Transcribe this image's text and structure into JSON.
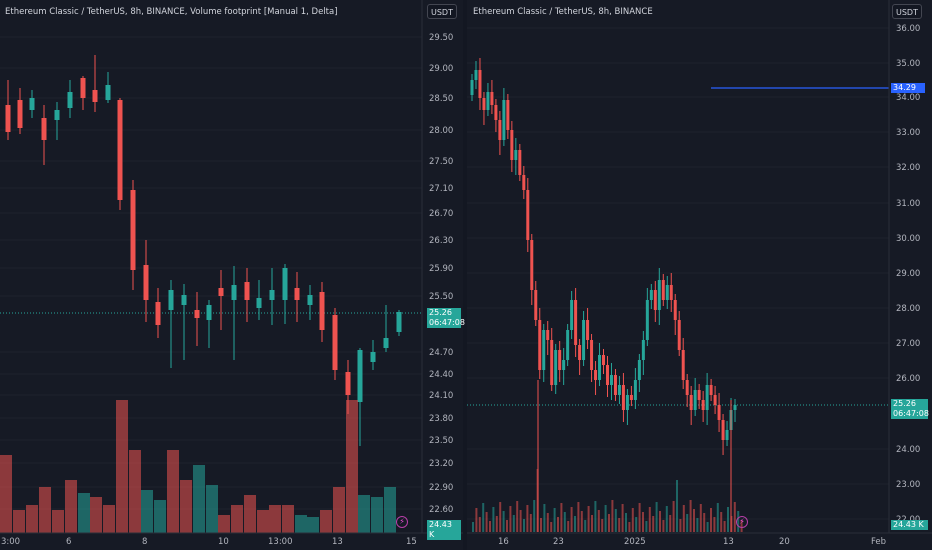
{
  "left": {
    "title": "Ethereum Classic / TetherUS, 8h, BINANCE, Volume footprint [Manual 1, Delta]",
    "currency": "USDT",
    "y_ticks": [
      "29.50",
      "29.00",
      "28.50",
      "28.00",
      "27.50",
      "27.10",
      "26.70",
      "26.30",
      "25.90",
      "25.50",
      "24.70",
      "24.40",
      "24.10",
      "23.80",
      "23.50",
      "23.20",
      "22.90",
      "22.60"
    ],
    "x_ticks": [
      "3:00",
      "6",
      "8",
      "10",
      "13:00",
      "13",
      "15"
    ],
    "price_tag": "25.26",
    "timer_tag": "06:47:08",
    "volume_tag": "24.43 K",
    "bolt_icon": "lightning-icon"
  },
  "right": {
    "title": "Ethereum Classic / TetherUS, 8h, BINANCE",
    "currency": "USDT",
    "y_ticks": [
      "36.00",
      "35.00",
      "34.00",
      "33.00",
      "32.00",
      "31.00",
      "30.00",
      "29.00",
      "28.00",
      "27.00",
      "26.00",
      "24.00",
      "23.00",
      "22.00"
    ],
    "x_ticks": [
      "16",
      "23",
      "2025",
      "13",
      "20",
      "Feb"
    ],
    "line_tag": "34.29",
    "price_tag": "25.26",
    "timer_tag": "06:47:08",
    "volume_tag": "24.43 K",
    "bolt_icon": "lightning-icon"
  },
  "colors": {
    "up": "#26a69a",
    "down": "#ef5350",
    "hline": "#2962ff"
  }
}
